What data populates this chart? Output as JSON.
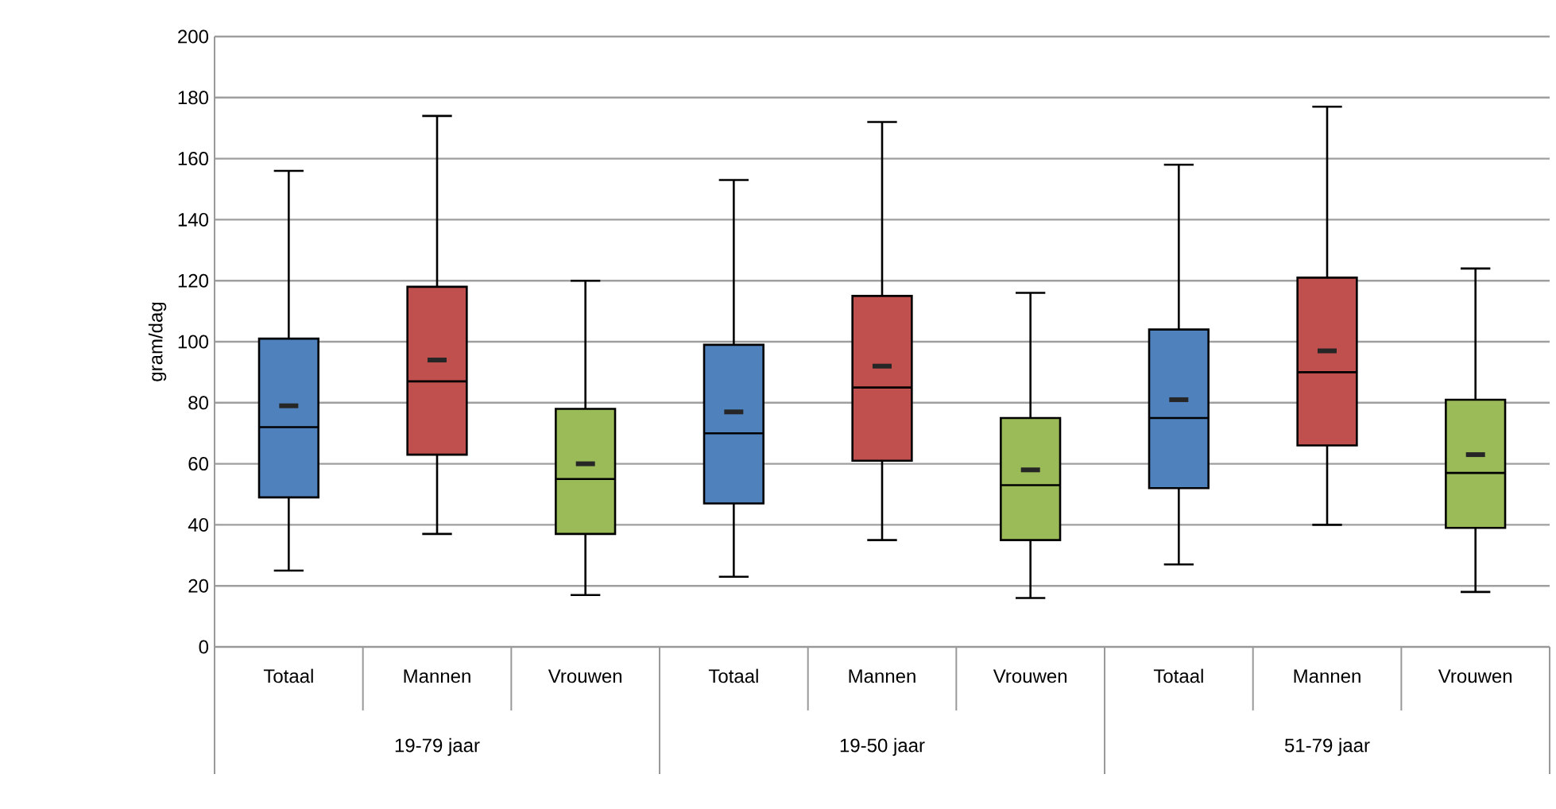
{
  "chart_data": {
    "type": "box",
    "ylabel": "gram/dag",
    "categories": [
      "Totaal",
      "Mannen",
      "Vrouwen",
      "Totaal",
      "Mannen",
      "Vrouwen",
      "Totaal",
      "Mannen",
      "Vrouwen"
    ],
    "colors": [
      "#4f81bd",
      "#c0504d",
      "#9bbb59",
      "#4f81bd",
      "#c0504d",
      "#9bbb59",
      "#4f81bd",
      "#c0504d",
      "#9bbb59"
    ],
    "boxes": [
      {
        "low": 25,
        "q1": 49,
        "median": 72,
        "q3": 101,
        "high": 156,
        "mean": 79
      },
      {
        "low": 37,
        "q1": 63,
        "median": 87,
        "q3": 118,
        "high": 174,
        "mean": 94
      },
      {
        "low": 17,
        "q1": 37,
        "median": 55,
        "q3": 78,
        "high": 120,
        "mean": 60
      },
      {
        "low": 23,
        "q1": 47,
        "median": 70,
        "q3": 99,
        "high": 153,
        "mean": 77
      },
      {
        "low": 35,
        "q1": 61,
        "median": 85,
        "q3": 115,
        "high": 172,
        "mean": 92
      },
      {
        "low": 16,
        "q1": 35,
        "median": 53,
        "q3": 75,
        "high": 116,
        "mean": 58
      },
      {
        "low": 27,
        "q1": 52,
        "median": 75,
        "q3": 104,
        "high": 158,
        "mean": 81
      },
      {
        "low": 40,
        "q1": 66,
        "median": 90,
        "q3": 121,
        "high": 177,
        "mean": 97
      },
      {
        "low": 18,
        "q1": 39,
        "median": 57,
        "q3": 81,
        "high": 124,
        "mean": 63
      }
    ],
    "ylim": [
      0,
      200
    ],
    "yticks": [
      0,
      20,
      40,
      60,
      80,
      100,
      120,
      140,
      160,
      180,
      200
    ],
    "grid": "y",
    "annotations": [
      "19-79 jaar",
      "19-50 jaar",
      "51-79 jaar"
    ]
  }
}
